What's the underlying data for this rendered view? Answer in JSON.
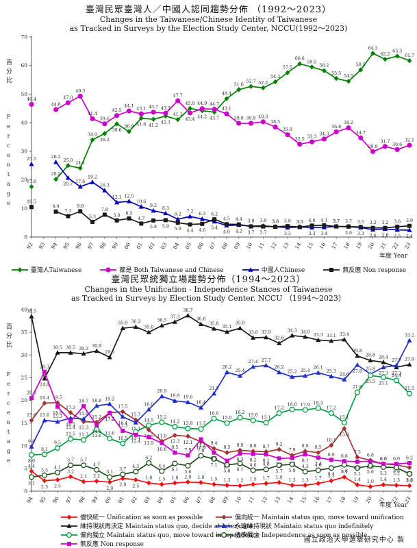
{
  "footer": "國立政治大學選舉研究中心 製",
  "chart_data": [
    {
      "type": "line",
      "title_zh": "臺灣民眾臺灣人／中國人認同趨勢分佈 （1992～2023）",
      "title_en_1": "Changes in the Taiwanese/Chinese Identity of Taiwanese",
      "title_en_2": "as Tracked in Surveys by the Election Study Center, NCCU(1992～2023)",
      "ylabel_zh": "百分比",
      "ylabel_en": "Percentage",
      "xlabel": "年度 Year",
      "ylim": [
        0,
        70
      ],
      "ytick_step": 10,
      "grid": false,
      "legend_position": "bottom",
      "categories": [
        "92",
        "93",
        "94",
        "95",
        "96",
        "97",
        "98",
        "99",
        "00",
        "01",
        "02",
        "03",
        "04",
        "05",
        "06",
        "07",
        "08",
        "09",
        "10",
        "11",
        "12",
        "13",
        "14",
        "15",
        "16",
        "17",
        "18",
        "19",
        "20",
        "21",
        "22",
        "23"
      ],
      "series": [
        {
          "key": "taiwanese",
          "label": "臺灣人Taiwanese",
          "color": "#008000",
          "marker": "diamond",
          "values": [
            17.6,
            null,
            20.2,
            25.0,
            24.1,
            34.0,
            36.2,
            39.6,
            36.9,
            41.6,
            41.2,
            42.3,
            41.1,
            45.0,
            44.2,
            43.7,
            48.4,
            51.6,
            52.7,
            52.2,
            54.3,
            57.5,
            60.6,
            59.5,
            58.2,
            55.5,
            54.5,
            58.5,
            64.3,
            62.2,
            63.3,
            61.7
          ]
        },
        {
          "key": "both",
          "label": "都是 Both Taiwanese and Chinese",
          "color": "#CC00CC",
          "marker": "circle",
          "values": [
            46.4,
            null,
            44.6,
            47.0,
            49.3,
            41.4,
            39.6,
            42.5,
            44.1,
            43.1,
            43.7,
            43.3,
            47.7,
            43.4,
            44.9,
            44.7,
            43.1,
            39.8,
            39.8,
            40.3,
            38.5,
            35.8,
            32.5,
            33.3,
            34.3,
            36.8,
            38.2,
            34.7,
            29.9,
            31.7,
            30.6,
            32.1
          ]
        },
        {
          "key": "chinese",
          "label": "中國人Chinese",
          "color": "#0000BB",
          "marker": "triangle",
          "values": [
            25.5,
            null,
            26.2,
            20.7,
            17.6,
            19.2,
            16.3,
            12.1,
            12.5,
            10.6,
            9.2,
            8.3,
            6.2,
            7.2,
            6.3,
            5.4,
            4.0,
            4.2,
            3.8,
            3.9,
            3.6,
            3.3,
            3.5,
            3.3,
            3.4,
            3.7,
            3.6,
            3.3,
            2.6,
            2.8,
            2.5,
            2.4
          ]
        },
        {
          "key": "non-response",
          "label": "無反應 Non response",
          "color": "#1A1A1A",
          "marker": "square",
          "values": [
            10.5,
            null,
            8.9,
            7.3,
            9.0,
            5.3,
            7.8,
            5.8,
            6.5,
            4.7,
            5.8,
            5.9,
            5.0,
            4.4,
            4.6,
            6.2,
            4.5,
            4.4,
            3.7,
            3.7,
            3.6,
            3.8,
            3.5,
            4.0,
            4.1,
            3.7,
            3.7,
            3.5,
            3.2,
            3.2,
            3.6,
            3.9
          ]
        }
      ]
    },
    {
      "type": "line",
      "title_zh": "臺灣民眾統獨立場趨勢分佈（1994～2023）",
      "title_en_1": "Changes in the Unification - Independence Stances of Taiwanese",
      "title_en_2": "as Tracked in Surveys by Election Study Center, NCCU （1994～2023）",
      "ylabel_zh": "百分比",
      "ylabel_en": "Percentage",
      "xlabel": "年度 Year",
      "ylim": [
        0,
        40
      ],
      "ytick_step": 5,
      "grid": false,
      "legend_position": "bottom",
      "categories": [
        "94",
        "95",
        "96",
        "97",
        "98",
        "99",
        "00",
        "01",
        "02",
        "03",
        "04",
        "05",
        "06",
        "07",
        "08",
        "09",
        "10",
        "11",
        "12",
        "13",
        "14",
        "15",
        "16",
        "17",
        "18",
        "19",
        "20",
        "21",
        "22",
        "23"
      ],
      "series": [
        {
          "key": "unification-asap",
          "label": "儘快統一 Unification as soon as possible",
          "color": "#EE1111",
          "marker": "diamond",
          "values": [
            4.4,
            2.3,
            2.5,
            3.2,
            2.1,
            2.2,
            2.0,
            2.8,
            2.5,
            1.8,
            1.5,
            1.8,
            2.0,
            1.9,
            1.5,
            1.3,
            1.2,
            1.5,
            1.7,
            1.9,
            1.3,
            1.3,
            1.7,
            2.3,
            3.1,
            1.4,
            1.0,
            1.4,
            1.3,
            1.2
          ]
        },
        {
          "key": "lean-unification",
          "label": "偏向統一 Maintain status quo, move toward unification",
          "color": "#A03434",
          "marker": "diamond",
          "values": [
            15.6,
            19.4,
            19.5,
            17.3,
            15.3,
            15.2,
            17.3,
            17.5,
            15.7,
            13.5,
            11.0,
            12.3,
            12.1,
            10.9,
            9.4,
            8.5,
            9.0,
            8.8,
            8.7,
            9.2,
            7.9,
            8.8,
            8.5,
            10.1,
            13.8,
            7.5,
            6.8,
            6.0,
            5.8,
            5.2
          ]
        },
        {
          "key": "status-quo-decide-later",
          "label": "維持現狀再決定 Maintain status quo, decide at later date",
          "color": "#1A1A1A",
          "marker": "triangle",
          "values": [
            38.5,
            24.8,
            30.5,
            30.5,
            30.3,
            30.9,
            29.5,
            35.9,
            36.2,
            35.0,
            36.5,
            37.3,
            38.7,
            36.8,
            35.8,
            35.1,
            35.9,
            33.8,
            33.9,
            32.6,
            34.3,
            34.0,
            33.3,
            33.1,
            33.4,
            29.8,
            28.8,
            28.4,
            27.3,
            27.9
          ]
        },
        {
          "key": "status-quo-indefinitely",
          "label": "永遠維持現狀 Maintain status quo indefinitely",
          "color": "#1F2FCC",
          "marker": "triangle",
          "values": [
            9.8,
            15.6,
            15.3,
            16.1,
            15.9,
            18.8,
            19.2,
            16.4,
            15.1,
            18.0,
            20.9,
            19.9,
            19.6,
            18.4,
            21.5,
            26.2,
            25.4,
            27.4,
            27.7,
            26.2,
            25.2,
            25.4,
            26.1,
            25.3,
            24.6,
            27.8,
            25.8,
            27.3,
            27.7,
            33.2
          ]
        },
        {
          "key": "lean-independence",
          "label": "偏向獨立 Maintain status quo, move toward independence",
          "color": "#00A040",
          "marker": "circle-open",
          "values": [
            8.0,
            8.1,
            9.5,
            11.5,
            11.3,
            13.6,
            11.6,
            10.5,
            13.1,
            14.5,
            15.2,
            14.2,
            13.8,
            13.7,
            16.0,
            15.0,
            16.2,
            15.6,
            15.1,
            17.2,
            18.0,
            17.9,
            18.3,
            17.2,
            15.1,
            21.8,
            25.5,
            25.1,
            24.4,
            21.5
          ]
        },
        {
          "key": "independence-asap",
          "label": "儘快獨立 Independence as soon as possible",
          "color": "#1F4F1F",
          "marker": "circle-open",
          "values": [
            3.1,
            3.5,
            4.1,
            5.7,
            5.7,
            4.7,
            3.1,
            3.7,
            4.3,
            6.2,
            4.4,
            6.1,
            5.6,
            7.8,
            7.1,
            5.8,
            6.1,
            4.6,
            4.8,
            5.7,
            5.9,
            4.3,
            4.6,
            5.1,
            5.8,
            5.1,
            5.6,
            5.3,
            5.2,
            3.8
          ]
        },
        {
          "key": "non-response",
          "label": "無反應 Non response",
          "color": "#CC00CC",
          "marker": "square",
          "values": [
            20.5,
            26.3,
            18.6,
            15.4,
            18.7,
            14.5,
            17.2,
            13.3,
            12.4,
            11.9,
            10.6,
            8.5,
            7.9,
            11.4,
            8.5,
            6.7,
            8.3,
            8.2,
            8.1,
            7.2,
            7.3,
            8.1,
            7.4,
            6.9,
            6.6,
            6.5,
            6.6,
            6.0,
            6.0,
            6.2
          ]
        }
      ]
    }
  ]
}
